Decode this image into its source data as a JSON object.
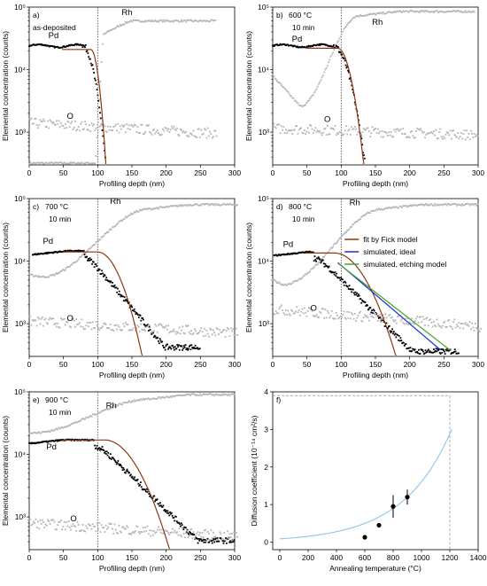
{
  "figure": {
    "background": "#ffffff",
    "colors": {
      "rh_points": "#b5b5b5",
      "o_points": "#b5b5b5",
      "pd_points": "#000000",
      "fick_fit": "#8b3a0e",
      "simulated_ideal": "#1f2fd0",
      "simulated_etching": "#4aa02c",
      "arrhenius_curve": "#8ec5ea"
    }
  },
  "chart_data": [
    {
      "type": "scatter",
      "panel_label": "a)",
      "condition": "as-deposited",
      "time_label": "",
      "xlabel": "Profiling depth (nm)",
      "ylabel": "Elemental concentration (counts)",
      "xlim": [
        0,
        300
      ],
      "ylim_log": [
        300,
        100000
      ],
      "xticks": [
        0,
        50,
        100,
        150,
        200,
        250,
        300
      ],
      "yticks": [
        {
          "value": 1000,
          "label": "10³"
        },
        {
          "value": 10000,
          "label": "10⁴"
        },
        {
          "value": 100000,
          "label": "10⁵"
        }
      ],
      "interface_depth": 100,
      "element_labels": [
        {
          "text": "Pd",
          "x": 28,
          "y": 32000
        },
        {
          "text": "Rh",
          "x": 135,
          "y": 75000
        },
        {
          "text": "O",
          "x": 55,
          "y": 1650
        }
      ],
      "series": [
        {
          "name": "Rh",
          "marker": "grey",
          "shape": "rh",
          "level": 60000,
          "rise_start": 97,
          "rise_end": 108,
          "pre": 320,
          "x_end": 272
        },
        {
          "name": "Pd",
          "marker": "black",
          "shape": "pd",
          "plateau": 24000,
          "x_start": 0,
          "decay_start": 78,
          "drop_end": 112,
          "floor": 300
        },
        {
          "name": "O",
          "marker": "grey",
          "shape": "o",
          "start": 1400,
          "end": 950,
          "x_end": 275
        }
      ],
      "fick_fit": {
        "plateau": 21000,
        "x_start": 48,
        "decay_start": 90,
        "end_x": 112
      }
    },
    {
      "type": "scatter",
      "panel_label": "b)",
      "condition": "600 °C",
      "time_label": "10 min",
      "xlabel": "Profiling depth (nm)",
      "ylabel": "Elemental concentration (counts)",
      "xlim": [
        0,
        300
      ],
      "ylim_log": [
        300,
        100000
      ],
      "xticks": [
        0,
        50,
        100,
        150,
        200,
        250,
        300
      ],
      "yticks": [
        {
          "value": 1000,
          "label": "10³"
        },
        {
          "value": 10000,
          "label": "10⁴"
        },
        {
          "value": 100000,
          "label": "10⁵"
        }
      ],
      "interface_depth": 100,
      "element_labels": [
        {
          "text": "Pd",
          "x": 28,
          "y": 28000
        },
        {
          "text": "Rh",
          "x": 145,
          "y": 52000
        },
        {
          "text": "O",
          "x": 75,
          "y": 1450
        }
      ],
      "series": [
        {
          "name": "Rh",
          "marker": "grey",
          "shape": "rh_dip",
          "start": 8000,
          "min_x": 40,
          "min": 2600,
          "rise_end": 125,
          "level": 85000,
          "x_end": 295
        },
        {
          "name": "Pd",
          "marker": "black",
          "shape": "pd",
          "plateau": 24000,
          "x_start": 0,
          "decay_start": 88,
          "drop_end": 135,
          "floor": 300
        },
        {
          "name": "O",
          "marker": "grey",
          "shape": "o",
          "start": 1150,
          "end": 900,
          "x_end": 300
        }
      ],
      "fick_fit": {
        "plateau": 22000,
        "x_start": 50,
        "decay_start": 95,
        "end_x": 133
      }
    },
    {
      "type": "scatter",
      "panel_label": "c)",
      "condition": "700 °C",
      "time_label": "10 min",
      "xlabel": "Profiling depth (nm)",
      "ylabel": "Elemental concentration (counts)",
      "xlim": [
        0,
        300
      ],
      "ylim_log": [
        300,
        100000
      ],
      "xticks": [
        0,
        50,
        100,
        150,
        200,
        250,
        300
      ],
      "yticks": [
        {
          "value": 1000,
          "label": "10³"
        },
        {
          "value": 10000,
          "label": "10⁴"
        },
        {
          "value": 100000,
          "label": "10⁵"
        }
      ],
      "interface_depth": 100,
      "element_labels": [
        {
          "text": "Pd",
          "x": 20,
          "y": 19000
        },
        {
          "text": "Rh",
          "x": 118,
          "y": 82000
        },
        {
          "text": "O",
          "x": 55,
          "y": 1100
        }
      ],
      "series": [
        {
          "name": "Rh",
          "marker": "grey",
          "shape": "rh_dip",
          "start": 6000,
          "min_x": 20,
          "min": 5600,
          "rise_end": 175,
          "level": 80000,
          "x_end": 305
        },
        {
          "name": "Pd",
          "marker": "black",
          "shape": "pd_tail",
          "plateau": 14500,
          "x_start": 5,
          "decay_start": 80,
          "k": 0.03,
          "floor": 420,
          "x_end": 250
        },
        {
          "name": "O",
          "marker": "grey",
          "shape": "o",
          "start": 1100,
          "end": 700,
          "x_end": 305
        }
      ],
      "fick_fit": {
        "plateau": 14000,
        "x_start": 48,
        "decay_start": 100,
        "end_x": 165
      }
    },
    {
      "type": "scatter",
      "panel_label": "d)",
      "condition": "800 °C",
      "time_label": "10 min",
      "xlabel": "Profiling depth (nm)",
      "ylabel": "Elemental concentration (counts)",
      "xlim": [
        0,
        300
      ],
      "ylim_log": [
        300,
        100000
      ],
      "xticks": [
        0,
        50,
        100,
        150,
        200,
        250,
        300
      ],
      "yticks": [
        {
          "value": 1000,
          "label": "10³"
        },
        {
          "value": 10000,
          "label": "10⁴"
        },
        {
          "value": 100000,
          "label": "10⁵"
        }
      ],
      "interface_depth": 100,
      "element_labels": [
        {
          "text": "Pd",
          "x": 15,
          "y": 17000
        },
        {
          "text": "Rh",
          "x": 112,
          "y": 78000
        },
        {
          "text": "O",
          "x": 55,
          "y": 1600
        }
      ],
      "series": [
        {
          "name": "Rh",
          "marker": "grey",
          "shape": "rh_dip",
          "start": 5000,
          "min_x": 15,
          "min": 4200,
          "rise_end": 160,
          "level": 80000,
          "x_end": 300
        },
        {
          "name": "Pd",
          "marker": "black",
          "shape": "pd_tail",
          "plateau": 14000,
          "x_start": 2,
          "decay_start": 60,
          "k": 0.0255,
          "floor": 360,
          "x_end": 272
        },
        {
          "name": "O",
          "marker": "grey",
          "shape": "o",
          "start": 1700,
          "end": 900,
          "x_end": 305
        }
      ],
      "fick_fit": {
        "plateau": 13500,
        "x_start": 48,
        "decay_start": 90,
        "end_x": 180
      },
      "extra_lines": [
        {
          "name": "simulated, ideal",
          "color": "#1f2fd0",
          "x0": 95,
          "y0": 9500,
          "x1": 245,
          "y1": 380
        },
        {
          "name": "simulated, etching model",
          "color": "#4aa02c",
          "x0": 95,
          "y0": 9300,
          "x1": 260,
          "y1": 370
        }
      ],
      "legend": {
        "position": "top-right",
        "entries": [
          {
            "label": "fit by Fick model",
            "color": "#8b3a0e"
          },
          {
            "label": "simulated, ideal",
            "color": "#1f2fd0"
          },
          {
            "label": "simulated, etching model",
            "color": "#4aa02c"
          }
        ]
      }
    },
    {
      "type": "scatter",
      "panel_label": "e)",
      "condition": "900 °C",
      "time_label": "10 min",
      "xlabel": "Profiling depth (nm)",
      "ylabel": "Elemental concentration (counts)",
      "xlim": [
        0,
        300
      ],
      "ylim_log": [
        300,
        100000
      ],
      "xticks": [
        0,
        50,
        100,
        150,
        200,
        250,
        300
      ],
      "yticks": [
        {
          "value": 1000,
          "label": "10³"
        },
        {
          "value": 10000,
          "label": "10⁴"
        },
        {
          "value": 100000,
          "label": "10⁵"
        }
      ],
      "interface_depth": 100,
      "element_labels": [
        {
          "text": "Pd",
          "x": 25,
          "y": 12000
        },
        {
          "text": "Rh",
          "x": 112,
          "y": 55000
        },
        {
          "text": "O",
          "x": 60,
          "y": 850
        }
      ],
      "series": [
        {
          "name": "Rh",
          "marker": "grey",
          "shape": "rh_dip",
          "start": 22000,
          "min_x": 5,
          "min": 22000,
          "rise_end": 175,
          "level": 90000,
          "x_end": 300
        },
        {
          "name": "Pd",
          "marker": "black",
          "shape": "pd_tail",
          "plateau": 17000,
          "x_start": 0,
          "decay_start": 95,
          "k": 0.0245,
          "floor": 420,
          "x_end": 300
        },
        {
          "name": "O",
          "marker": "grey",
          "shape": "o",
          "start": 800,
          "end": 480,
          "x_end": 305
        }
      ],
      "fick_fit": {
        "plateau": 17000,
        "x_start": 48,
        "decay_start": 110,
        "end_x": 205
      }
    },
    {
      "type": "line",
      "panel_label": "f)",
      "xlabel": "Annealing temperature (°C)",
      "ylabel": "Diffusion coefficient (10⁻¹⁴ cm²/s)",
      "xlim": [
        -50,
        1400
      ],
      "ylim": [
        -0.2,
        4
      ],
      "xticks": [
        0,
        200,
        400,
        600,
        800,
        1000,
        1200,
        1400
      ],
      "yticks": [
        0,
        1,
        2,
        3,
        4
      ],
      "points": [
        {
          "x": 600,
          "y": 0.13,
          "yerr": 0.0
        },
        {
          "x": 700,
          "y": 0.45,
          "yerr": 0.0
        },
        {
          "x": 800,
          "y": 0.95,
          "yerr": 0.3
        },
        {
          "x": 900,
          "y": 1.2,
          "yerr": 0.2
        }
      ],
      "fit_curve": {
        "model": "arrhenius",
        "x_end": 1215,
        "ref_x": 900,
        "ref_y": 1.2,
        "activation": 0.0146
      },
      "guide": {
        "x": 1200,
        "y": 3.9
      }
    }
  ]
}
